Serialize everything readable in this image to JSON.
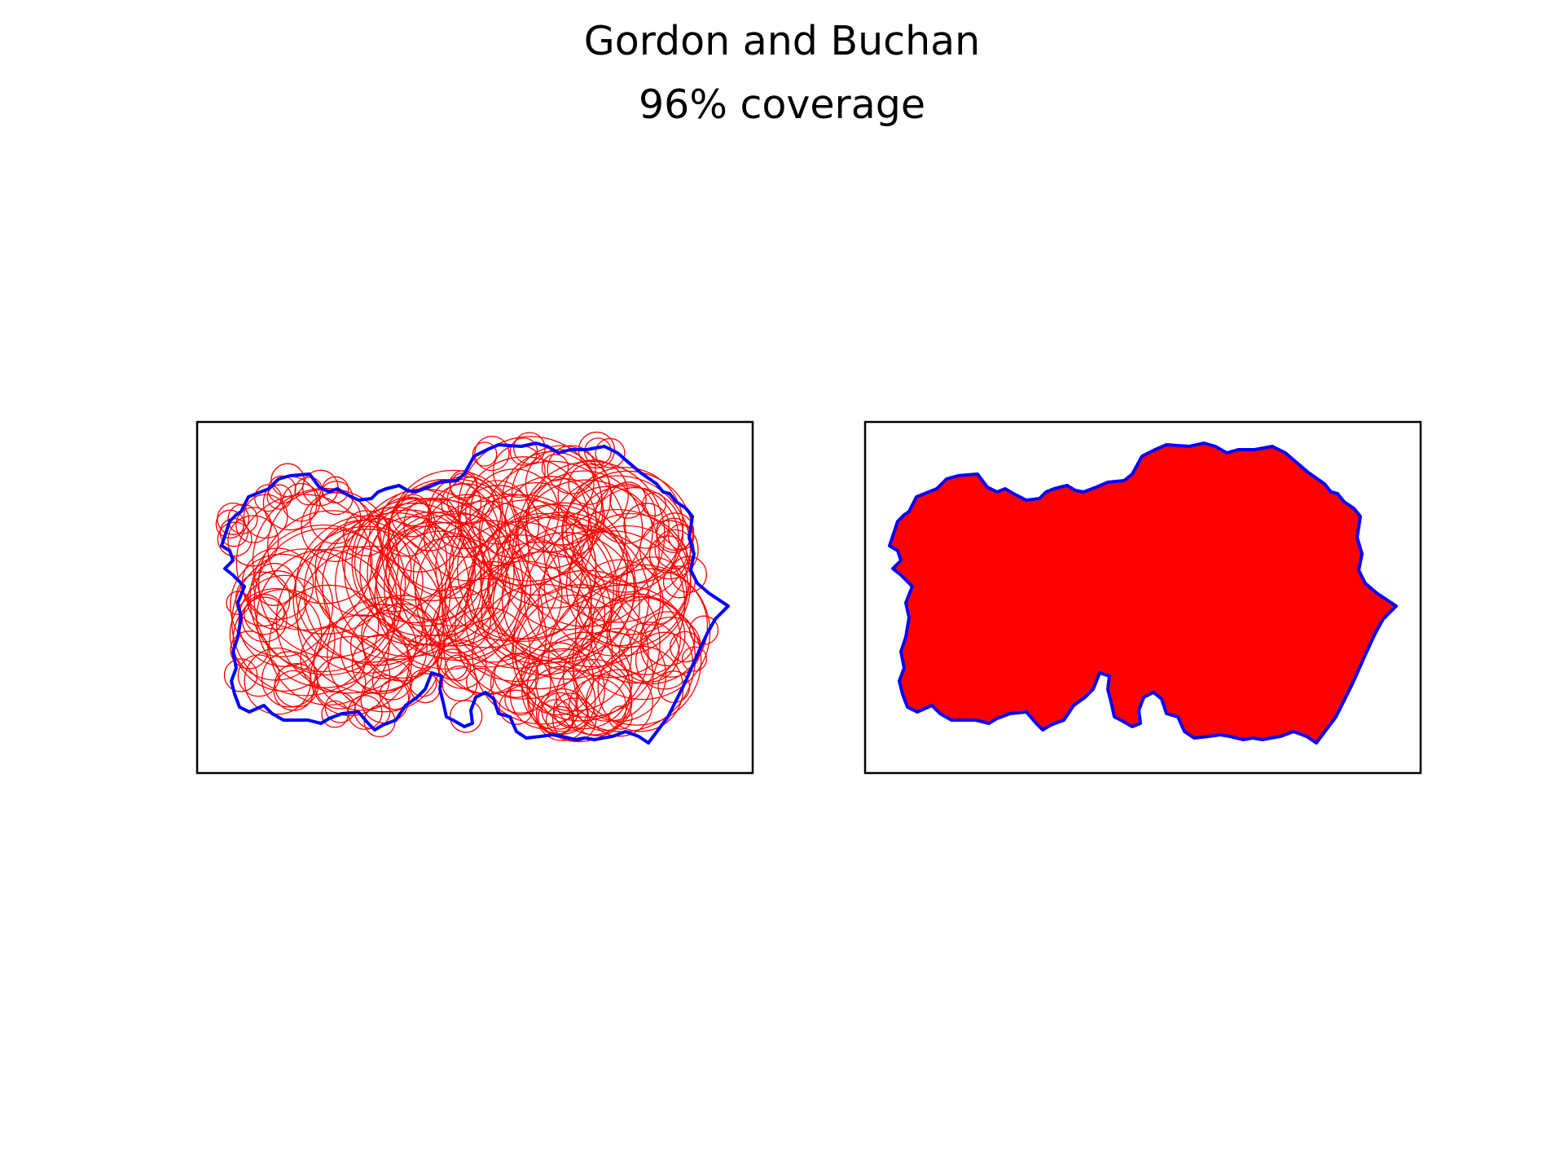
{
  "figure": {
    "title": "Gordon and Buchan",
    "subtitle": "96% coverage"
  },
  "colors": {
    "boundary": "#0000ff",
    "circles": "#ff0000",
    "fill": "#ff0000",
    "frame": "#000000",
    "background": "#ffffff"
  },
  "panels": [
    {
      "id": "circles-panel",
      "style": "circle outlines"
    },
    {
      "id": "filled-panel",
      "style": "filled union"
    }
  ]
}
